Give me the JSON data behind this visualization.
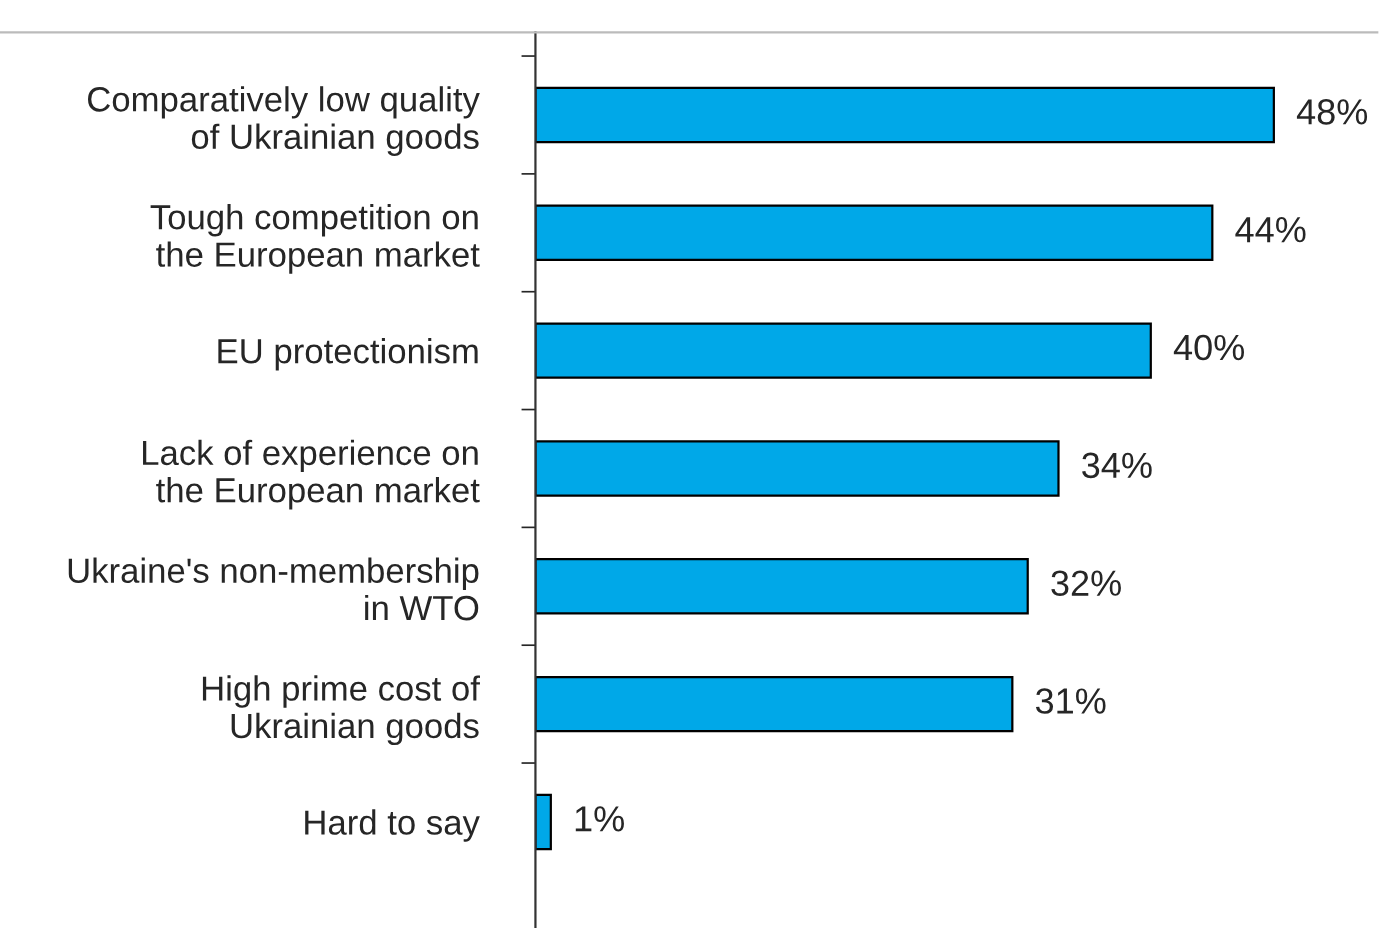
{
  "chart_data": {
    "type": "bar",
    "orientation": "horizontal",
    "categories": [
      "Comparatively low quality\nof Ukrainian goods",
      "Tough competition on\nthe European market",
      "EU protectionism",
      "Lack of experience on\nthe European market",
      "Ukraine's non-membership\nin WTO",
      "High prime cost of\nUkrainian goods",
      "Hard to say"
    ],
    "values": [
      48,
      44,
      40,
      34,
      32,
      31,
      1
    ],
    "value_labels": [
      "48%",
      "44%",
      "40%",
      "34%",
      "32%",
      "31%",
      "1%"
    ],
    "color": "#00a8e8",
    "grid": false,
    "legend": false
  }
}
